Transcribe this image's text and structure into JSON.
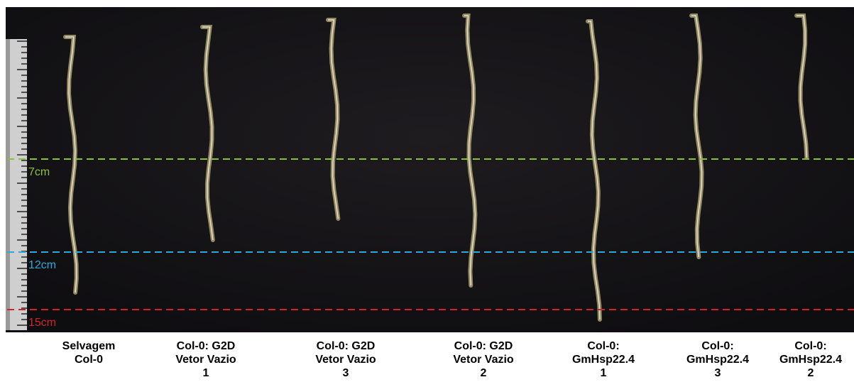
{
  "markers": [
    {
      "label": "7cm",
      "color": "#8fbf3a"
    },
    {
      "label": "12cm",
      "color": "#2fa8d8"
    },
    {
      "label": "15cm",
      "color": "#d0242a"
    }
  ],
  "captions": [
    [
      "Selvagem",
      "Col-0"
    ],
    [
      "Col-0: G2D",
      "Vetor Vazio",
      "1"
    ],
    [
      "Col-0: G2D",
      "Vetor Vazio",
      "3"
    ],
    [
      "Col-0: G2D",
      "Vetor Vazio",
      "2"
    ],
    [
      "Col-0:",
      "GmHsp22.4",
      "1"
    ],
    [
      "Col-0:",
      "GmHsp22.4",
      "3"
    ],
    [
      "Col-0:",
      "GmHsp22.4",
      "2"
    ]
  ]
}
